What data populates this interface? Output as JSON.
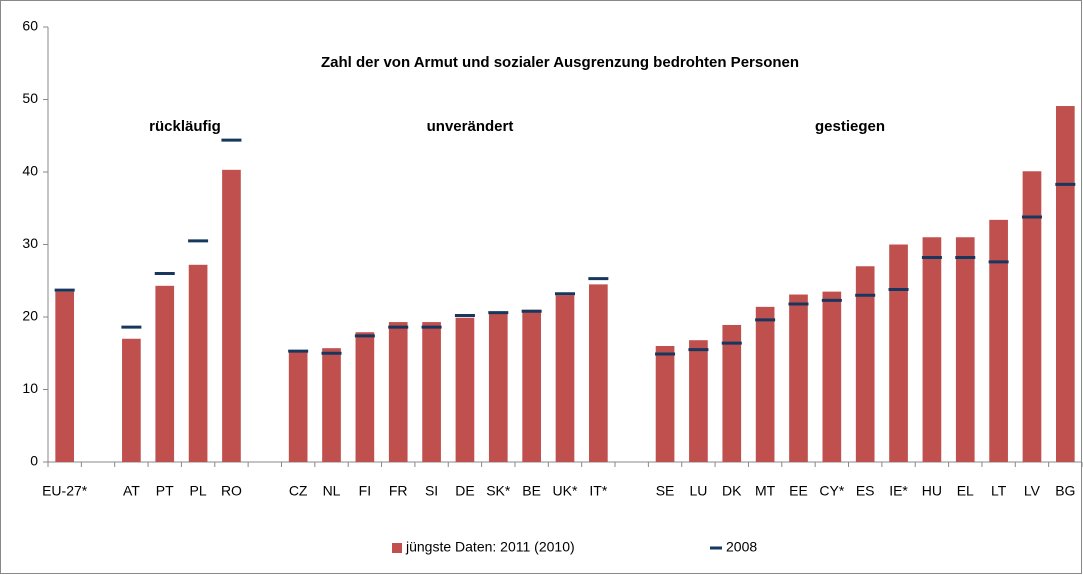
{
  "chart_data": {
    "type": "bar",
    "title": "Zahl der von Armut und sozialer Ausgrenzung bedrohten Personen",
    "annotations": [
      "rückläufig",
      "unverändert",
      "gestiegen"
    ],
    "categories": [
      "EU-27*",
      null,
      "AT",
      "PT",
      "PL",
      "RO",
      null,
      "CZ",
      "NL",
      "FI",
      "FR",
      "SI",
      "DE",
      "SK*",
      "BE",
      "UK*",
      "IT*",
      null,
      "SE",
      "LU",
      "DK",
      "MT",
      "EE",
      "CY*",
      "ES",
      "IE*",
      "HU",
      "EL",
      "LT",
      "LV",
      "BG"
    ],
    "series": [
      {
        "name": "jüngste Daten: 2011 (2010)",
        "color": "#c0504d",
        "marker": "bar",
        "values": [
          23.5,
          null,
          17,
          24.3,
          27.2,
          40.3,
          null,
          15.3,
          15.7,
          17.9,
          19.3,
          19.3,
          19.9,
          20.6,
          21,
          23,
          24.5,
          null,
          16,
          16.8,
          18.9,
          21.4,
          23.1,
          23.5,
          27,
          30,
          31,
          31,
          33.4,
          40.1,
          49.1
        ]
      },
      {
        "name": "2008",
        "color": "#17375e",
        "marker": "dash",
        "values": [
          23.7,
          null,
          18.6,
          26,
          30.5,
          44.4,
          null,
          15.3,
          15,
          17.4,
          18.6,
          18.6,
          20.2,
          20.6,
          20.8,
          23.2,
          25.3,
          null,
          14.9,
          15.5,
          16.4,
          19.6,
          21.8,
          22.3,
          23,
          23.8,
          28.2,
          28.2,
          27.6,
          33.8,
          38.3
        ]
      }
    ],
    "ylim": [
      0,
      60
    ],
    "yticks": [
      0,
      10,
      20,
      30,
      40,
      50,
      60
    ],
    "grid": false
  }
}
